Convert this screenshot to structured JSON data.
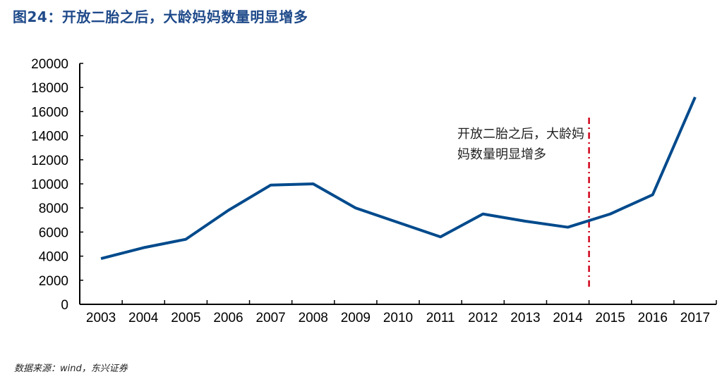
{
  "title": "图24：开放二胎之后，大龄妈妈数量明显增多",
  "source": "数据来源：wind，东兴证券",
  "chart_data": {
    "type": "line",
    "title": "图24：开放二胎之后，大龄妈妈数量明显增多",
    "categories": [
      "2003",
      "2004",
      "2005",
      "2006",
      "2007",
      "2008",
      "2009",
      "2010",
      "2011",
      "2012",
      "2013",
      "2014",
      "2015",
      "2016",
      "2017"
    ],
    "series": [
      {
        "values": [
          3800,
          4700,
          5400,
          7800,
          9900,
          10000,
          8000,
          6800,
          5600,
          7500,
          6900,
          6400,
          7500,
          9100,
          17200
        ],
        "color": "#004a8c"
      }
    ],
    "ylim": [
      0,
      20000
    ],
    "yticks": [
      0,
      2000,
      4000,
      6000,
      8000,
      10000,
      12000,
      14000,
      16000,
      18000,
      20000
    ],
    "grid": false,
    "legend": "none",
    "annotation": {
      "text": "开放二胎之后，大龄妈妈数量明显增多",
      "marker_between": [
        "2014",
        "2015"
      ],
      "marker_color": "#d0021b",
      "marker_style": "dash-dot"
    }
  }
}
